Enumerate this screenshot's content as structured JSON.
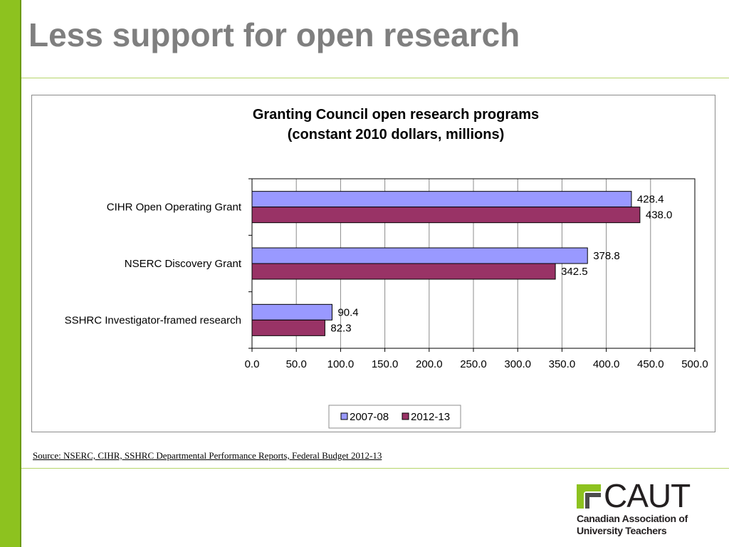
{
  "slide": {
    "title": "Less support for open research",
    "source": "Source: NSERC, CIHR, SSHRC Departmental Performance Reports, Federal Budget 2012-13"
  },
  "logo": {
    "wordmark": "CAUT",
    "subtitle": "Canadian Association of\nUniversity Teachers"
  },
  "colors": {
    "accent_bar": "#8dc21f",
    "rule": "#b5d56a",
    "title_text": "#7f7f7f"
  },
  "chart_data": {
    "type": "bar",
    "orientation": "horizontal",
    "title": "Granting Council open research programs",
    "subtitle": "(constant 2010 dollars, millions)",
    "categories": [
      "CIHR Open Operating Grant",
      "NSERC Discovery Grant",
      "SSHRC Investigator-framed research"
    ],
    "series": [
      {
        "name": "2007-08",
        "values": [
          428.4,
          378.8,
          90.4
        ],
        "display": [
          "428.4",
          "378.8",
          "90.4"
        ],
        "color": "#9999ff"
      },
      {
        "name": "2012-13",
        "values": [
          438.0,
          342.5,
          82.3
        ],
        "display": [
          "438.0",
          "342.5",
          "82.3"
        ],
        "color": "#993366"
      }
    ],
    "xlim": [
      0,
      500
    ],
    "xticks": [
      "0.0",
      "50.0",
      "100.0",
      "150.0",
      "200.0",
      "250.0",
      "300.0",
      "350.0",
      "400.0",
      "450.0",
      "500.0"
    ],
    "xlabel": "",
    "ylabel": "",
    "grid": "vertical",
    "legend": "bottom"
  }
}
